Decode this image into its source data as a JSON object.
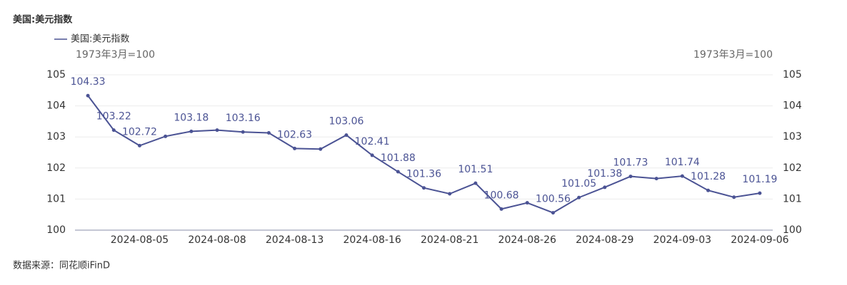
{
  "chart_data": {
    "type": "line",
    "title": "美国:美元指数",
    "y_label": "1973年3月=100",
    "y2_label": "1973年3月=100",
    "source": "数据来源：同花顺iFinD",
    "categories": [
      null,
      null,
      "2024-08-05",
      null,
      null,
      "2024-08-08",
      null,
      null,
      "2024-08-13",
      null,
      null,
      "2024-08-16",
      null,
      null,
      "2024-08-21",
      null,
      null,
      "2024-08-26",
      null,
      null,
      "2024-08-29",
      null,
      null,
      "2024-09-03",
      null,
      null,
      "2024-09-06"
    ],
    "series": [
      {
        "name": "美国:美元指数",
        "color": "#4b5394",
        "values": [
          104.33,
          103.22,
          102.72,
          103.02,
          103.18,
          103.22,
          103.16,
          103.13,
          102.63,
          102.61,
          103.06,
          102.41,
          101.88,
          101.36,
          101.17,
          101.51,
          100.68,
          100.88,
          100.56,
          101.05,
          101.38,
          101.73,
          101.66,
          101.74,
          101.28,
          101.06,
          101.19
        ],
        "value_labels": [
          "104.33",
          "103.22",
          "102.72",
          null,
          "103.18",
          null,
          "103.16",
          null,
          "102.63",
          null,
          "103.06",
          "102.41",
          "101.88",
          "101.36",
          null,
          "101.51",
          "100.68",
          null,
          "100.56",
          "101.05",
          "101.38",
          "101.73",
          null,
          "101.74",
          "101.28",
          null,
          "101.19"
        ]
      }
    ],
    "ylim": [
      100,
      105
    ],
    "yticks": [
      100,
      101,
      102,
      103,
      104,
      105
    ],
    "y2lim": [
      100,
      105
    ],
    "y2ticks": [
      100,
      101,
      102,
      103,
      104,
      105
    ],
    "grid": true
  }
}
